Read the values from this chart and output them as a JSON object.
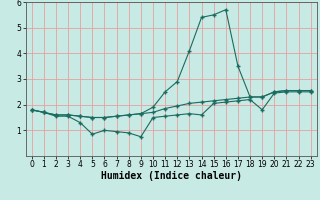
{
  "title": "",
  "xlabel": "Humidex (Indice chaleur)",
  "ylabel": "",
  "background_color": "#c8eae4",
  "grid_color": "#e8a0a0",
  "line_color": "#1a6b60",
  "x": [
    0,
    1,
    2,
    3,
    4,
    5,
    6,
    7,
    8,
    9,
    10,
    11,
    12,
    13,
    14,
    15,
    16,
    17,
    18,
    19,
    20,
    21,
    22,
    23
  ],
  "y_min": [
    1.8,
    1.7,
    1.55,
    1.55,
    1.3,
    0.85,
    1.0,
    0.95,
    0.9,
    0.75,
    1.5,
    1.55,
    1.6,
    1.65,
    1.6,
    2.05,
    2.1,
    2.15,
    2.2,
    1.8,
    2.45,
    2.5,
    2.5,
    2.5
  ],
  "y_mean": [
    1.8,
    1.7,
    1.6,
    1.6,
    1.55,
    1.5,
    1.5,
    1.55,
    1.6,
    1.65,
    1.7,
    1.85,
    1.95,
    2.05,
    2.1,
    2.15,
    2.2,
    2.25,
    2.3,
    2.3,
    2.5,
    2.55,
    2.55,
    2.55
  ],
  "y_max": [
    1.8,
    1.7,
    1.6,
    1.6,
    1.55,
    1.5,
    1.5,
    1.55,
    1.6,
    1.65,
    1.9,
    2.5,
    2.9,
    4.1,
    5.4,
    5.5,
    5.7,
    3.5,
    2.3,
    2.3,
    2.5,
    2.55,
    2.55,
    2.55
  ],
  "ylim": [
    0,
    6
  ],
  "xlim": [
    -0.5,
    23.5
  ],
  "yticks": [
    1,
    2,
    3,
    4,
    5,
    6
  ],
  "xticks": [
    0,
    1,
    2,
    3,
    4,
    5,
    6,
    7,
    8,
    9,
    10,
    11,
    12,
    13,
    14,
    15,
    16,
    17,
    18,
    19,
    20,
    21,
    22,
    23
  ],
  "marker": "+",
  "markersize": 3,
  "linewidth": 0.8,
  "tick_fontsize": 5.5,
  "xlabel_fontsize": 7
}
